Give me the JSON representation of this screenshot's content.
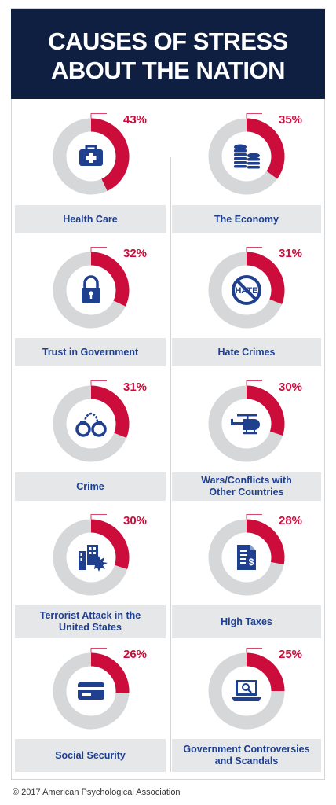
{
  "title_line1": "CAUSES OF STRESS",
  "title_line2": "ABOUT THE NATION",
  "footer": "© 2017 American Psychological Association",
  "colors": {
    "header": "#0f1f42",
    "accent": "#cc0d3c",
    "ring": "#d6d7d9",
    "icon": "#1f3f8f",
    "label_bg": "#e6e7e9"
  },
  "chart_data": {
    "type": "pie",
    "title": "CAUSES OF STRESS ABOUT THE NATION",
    "categories": [
      "Health Care",
      "The Economy",
      "Trust in Government",
      "Hate Crimes",
      "Crime",
      "Wars/Conflicts with Other Countries",
      "Terrorist Attack in the United States",
      "High Taxes",
      "Social Security",
      "Government Controversies and Scandals"
    ],
    "values": [
      43,
      35,
      32,
      31,
      31,
      30,
      30,
      28,
      26,
      25
    ],
    "unit": "%"
  },
  "items": [
    {
      "label": "Health Care",
      "value": 43,
      "value_label": "43%",
      "icon": "first-aid-kit-icon"
    },
    {
      "label": "The Economy",
      "value": 35,
      "value_label": "35%",
      "icon": "coin-stacks-icon"
    },
    {
      "label": "Trust in Government",
      "value": 32,
      "value_label": "32%",
      "icon": "padlock-icon"
    },
    {
      "label": "Hate Crimes",
      "value": 31,
      "value_label": "31%",
      "icon": "no-hate-icon"
    },
    {
      "label": "Crime",
      "value": 31,
      "value_label": "31%",
      "icon": "handcuffs-icon"
    },
    {
      "label": "Wars/Conflicts with\nOther Countries",
      "value": 30,
      "value_label": "30%",
      "icon": "helicopter-icon"
    },
    {
      "label": "Terrorist Attack in the\nUnited States",
      "value": 30,
      "value_label": "30%",
      "icon": "building-explosion-icon"
    },
    {
      "label": "High Taxes",
      "value": 28,
      "value_label": "28%",
      "icon": "tax-document-icon"
    },
    {
      "label": "Social Security",
      "value": 26,
      "value_label": "26%",
      "icon": "card-icon"
    },
    {
      "label": "Government Controversies\nand Scandals",
      "value": 25,
      "value_label": "25%",
      "icon": "laptop-search-icon"
    }
  ]
}
